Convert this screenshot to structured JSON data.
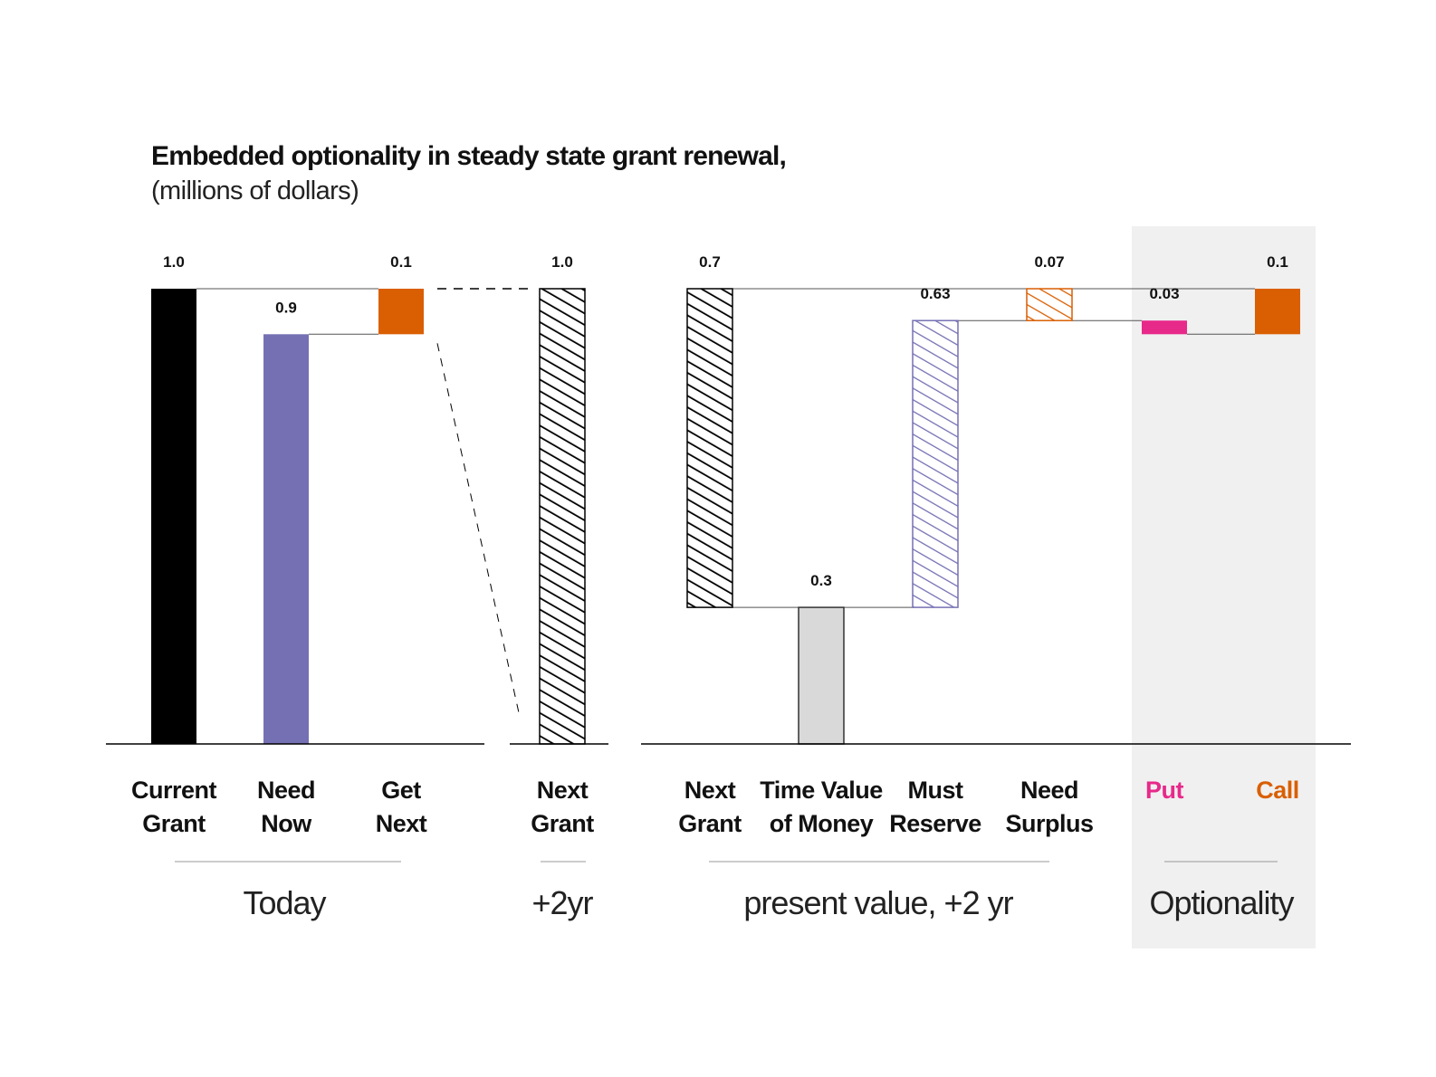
{
  "chart_data": {
    "type": "bar",
    "subtype": "waterfall",
    "title": "Embedded optionality in steady state grant renewal,",
    "subtitle": "(millions of dollars)",
    "unit": "millions of dollars",
    "ylim": [
      0,
      1.0
    ],
    "grid": false,
    "highlight_group": "Optionality",
    "groups": [
      {
        "label": "Today",
        "bars": [
          {
            "label": [
              "Current",
              "Grant"
            ],
            "value": 1.0,
            "value_label": "1.0",
            "base": 0,
            "fill": "solid",
            "color": "#000000"
          },
          {
            "label": [
              "Need",
              "Now"
            ],
            "value": 0.9,
            "value_label": "0.9",
            "base": 0,
            "fill": "solid",
            "color": "#7570b3"
          },
          {
            "label": [
              "Get",
              "Next"
            ],
            "value": 0.1,
            "value_label": "0.1",
            "base": 0.9,
            "fill": "solid",
            "color": "#d95f02"
          }
        ]
      },
      {
        "label": "+2yr",
        "bars": [
          {
            "label": [
              "Next",
              "Grant"
            ],
            "value": 1.0,
            "value_label": "1.0",
            "base": 0,
            "fill": "hatched",
            "color": "#000000"
          }
        ]
      },
      {
        "label": "present value, +2 yr",
        "bars": [
          {
            "label": [
              "Next",
              "Grant"
            ],
            "value": 0.7,
            "value_label": "0.7",
            "base": 0.3,
            "fill": "hatched",
            "color": "#000000"
          },
          {
            "label": [
              "Time Value",
              "of Money"
            ],
            "value": 0.3,
            "value_label": "0.3",
            "base": 0,
            "fill": "solid",
            "color": "#d9d9d9"
          },
          {
            "label": [
              "Must",
              "Reserve"
            ],
            "value": 0.63,
            "value_label": "0.63",
            "base": 0.3,
            "fill": "hatched",
            "color": "#7570b3"
          },
          {
            "label": [
              "Need",
              "Surplus"
            ],
            "value": 0.07,
            "value_label": "0.07",
            "base": 0.93,
            "fill": "hatched",
            "color": "#d95f02"
          }
        ]
      },
      {
        "label": "Optionality",
        "bars": [
          {
            "label": [
              "Put"
            ],
            "value": 0.03,
            "value_label": "0.03",
            "base": 0.9,
            "fill": "solid",
            "color": "#e7298a",
            "label_color": "#e7298a"
          },
          {
            "label": [
              "Call"
            ],
            "value": 0.1,
            "value_label": "0.1",
            "base": 0.9,
            "fill": "solid",
            "color": "#d95f02",
            "label_color": "#d95f02"
          }
        ]
      }
    ]
  }
}
